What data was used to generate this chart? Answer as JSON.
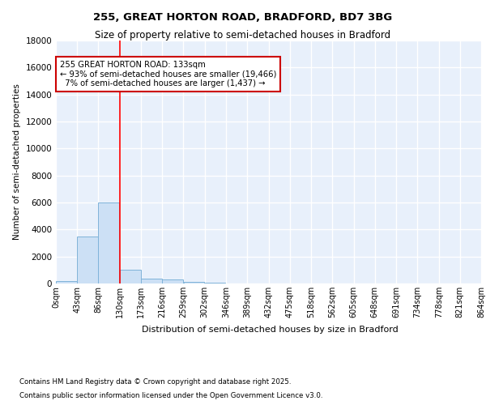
{
  "title_line1": "255, GREAT HORTON ROAD, BRADFORD, BD7 3BG",
  "title_line2": "Size of property relative to semi-detached houses in Bradford",
  "xlabel": "Distribution of semi-detached houses by size in Bradford",
  "ylabel": "Number of semi-detached properties",
  "footnote1": "Contains HM Land Registry data © Crown copyright and database right 2025.",
  "footnote2": "Contains public sector information licensed under the Open Government Licence v3.0.",
  "annotation_title": "255 GREAT HORTON ROAD: 133sqm",
  "annotation_line1": "← 93% of semi-detached houses are smaller (19,466)",
  "annotation_line2": "7% of semi-detached houses are larger (1,437) →",
  "property_size": 133,
  "bins": [
    0,
    43,
    86,
    130,
    173,
    216,
    259,
    302,
    346,
    389,
    432,
    475,
    518,
    562,
    605,
    648,
    691,
    734,
    778,
    821,
    864
  ],
  "bin_labels": [
    "0sqm",
    "43sqm",
    "86sqm",
    "130sqm",
    "173sqm",
    "216sqm",
    "259sqm",
    "302sqm",
    "346sqm",
    "389sqm",
    "432sqm",
    "475sqm",
    "518sqm",
    "562sqm",
    "605sqm",
    "648sqm",
    "691sqm",
    "734sqm",
    "778sqm",
    "821sqm",
    "864sqm"
  ],
  "counts": [
    200,
    3500,
    6000,
    1000,
    350,
    280,
    150,
    80,
    0,
    0,
    0,
    0,
    0,
    0,
    0,
    0,
    0,
    0,
    0,
    0
  ],
  "bar_color": "#cce0f5",
  "bar_edge_color": "#7fb3d9",
  "red_line_x": 130,
  "annotation_box_color": "#ffffff",
  "annotation_box_edge": "#cc0000",
  "background_color": "#e8f0fb",
  "grid_color": "#ffffff",
  "ylim": [
    0,
    18000
  ],
  "yticks": [
    0,
    2000,
    4000,
    6000,
    8000,
    10000,
    12000,
    14000,
    16000,
    18000
  ]
}
